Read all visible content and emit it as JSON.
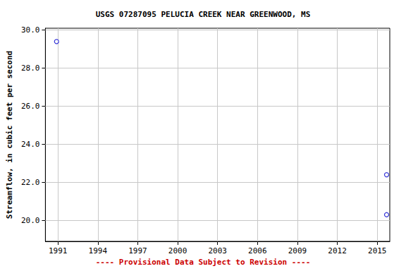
{
  "chart_data": {
    "type": "scatter",
    "title": "USGS 07287095 PELUCIA CREEK NEAR GREENWOOD, MS",
    "y_label": "Streamflow, in cubic feet per second",
    "annotation": "---- Provisional Data Subject to Revision ----",
    "x": [
      1990.9,
      2015.7,
      2015.7
    ],
    "values": [
      29.4,
      22.4,
      20.3
    ],
    "color": "#0000cc",
    "marker": "circle_open",
    "xlim": [
      1990.06,
      2015.94
    ],
    "xticks": [
      1991,
      1994,
      1997,
      2000,
      2003,
      2006,
      2009,
      2012,
      2015
    ],
    "ylim": [
      18.9,
      30.1
    ],
    "yticks": [
      {
        "value": 20,
        "label": "20.0"
      },
      {
        "value": 22,
        "label": "22.0"
      },
      {
        "value": 24,
        "label": "24.0"
      },
      {
        "value": 26,
        "label": "26.0"
      },
      {
        "value": 28,
        "label": "28.0"
      },
      {
        "value": 30,
        "label": "30.0"
      }
    ],
    "grid": true
  }
}
